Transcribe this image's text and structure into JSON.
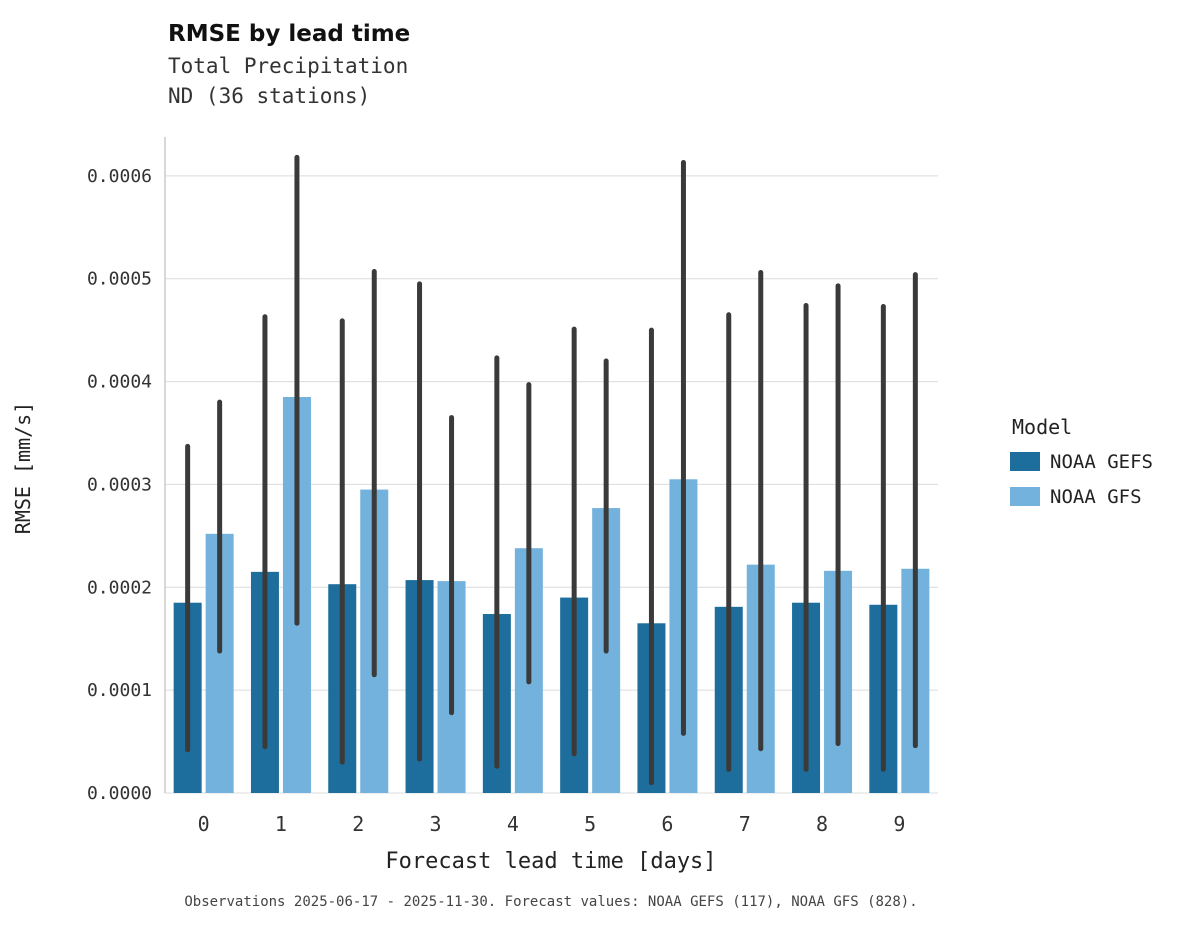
{
  "footer": "Observations 2025-06-17 - 2025-11-30. Forecast values: NOAA GEFS (117), NOAA GFS (828).",
  "chart_data": {
    "type": "bar",
    "title": "RMSE by lead time",
    "subtitle": [
      "Total Precipitation",
      "ND (36 stations)"
    ],
    "xlabel": "Forecast lead time [days]",
    "ylabel": "RMSE [mm/s]",
    "legend_title": "Model",
    "legend_position": "right",
    "grid": true,
    "categories": [
      "0",
      "1",
      "2",
      "3",
      "4",
      "5",
      "6",
      "7",
      "8",
      "9"
    ],
    "ylim": [
      0,
      0.00063
    ],
    "yticks": [
      0,
      0.0001,
      0.0002,
      0.0003,
      0.0004,
      0.0005,
      0.0006
    ],
    "ytick_labels": [
      "0.0000",
      "0.0001",
      "0.0002",
      "0.0003",
      "0.0004",
      "0.0005",
      "0.0006"
    ],
    "error_bar_color": "#3a3a3a",
    "series": [
      {
        "name": "NOAA GEFS",
        "color": "#1d6e9c",
        "values": [
          0.000185,
          0.000215,
          0.000203,
          0.000207,
          0.000174,
          0.00019,
          0.000165,
          0.000181,
          0.000185,
          0.000183
        ],
        "error_low": [
          4.2e-05,
          4.5e-05,
          3e-05,
          3.3e-05,
          2.6e-05,
          3.8e-05,
          1e-05,
          2.3e-05,
          2.3e-05,
          2.3e-05
        ],
        "error_high": [
          0.000337,
          0.000463,
          0.000459,
          0.000495,
          0.000423,
          0.000451,
          0.00045,
          0.000465,
          0.000474,
          0.000473
        ]
      },
      {
        "name": "NOAA GFS",
        "color": "#72b2dc",
        "values": [
          0.000252,
          0.000385,
          0.000295,
          0.000206,
          0.000238,
          0.000277,
          0.000305,
          0.000222,
          0.000216,
          0.000218
        ],
        "error_low": [
          0.000138,
          0.000165,
          0.000115,
          7.8e-05,
          0.000108,
          0.000138,
          5.8e-05,
          4.3e-05,
          4.8e-05,
          4.6e-05
        ],
        "error_high": [
          0.00038,
          0.000618,
          0.000507,
          0.000365,
          0.000397,
          0.00042,
          0.000613,
          0.000506,
          0.000493,
          0.000504
        ]
      }
    ]
  }
}
